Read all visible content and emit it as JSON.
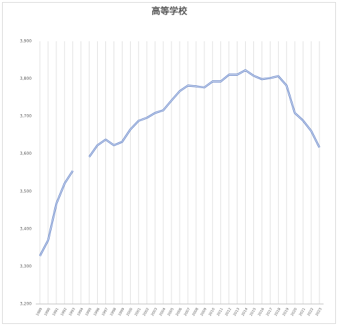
{
  "chart_data": {
    "type": "line",
    "title": "高等学校",
    "categories": [
      "1989",
      "1990",
      "1991",
      "1992",
      "1993",
      "1994",
      "1995",
      "1996",
      "1997",
      "1998",
      "1999",
      "2000",
      "2001",
      "2002",
      "2003",
      "2004",
      "2005",
      "2006",
      "2007",
      "2008",
      "2009",
      "2010",
      "2011",
      "2012",
      "2013",
      "2014",
      "2015",
      "2016",
      "2017",
      "2018",
      "2019",
      "2020",
      "2021",
      "2022",
      "2023"
    ],
    "series": [
      {
        "name": "高等学校",
        "color": "#4a6fbf",
        "values": [
          3328,
          3370,
          3467,
          3521,
          3555,
          null,
          3592,
          3623,
          3638,
          3623,
          3632,
          3665,
          3688,
          3696,
          3709,
          3716,
          3742,
          3767,
          3782,
          3780,
          3777,
          3793,
          3793,
          3811,
          3811,
          3823,
          3808,
          3799,
          3802,
          3807,
          3782,
          3709,
          3689,
          3661,
          3617
        ]
      }
    ],
    "ylim": [
      3200,
      3900
    ],
    "yticks": [
      {
        "value": 3200,
        "label": "3,200"
      },
      {
        "value": 3300,
        "label": "3,300"
      },
      {
        "value": 3400,
        "label": "3,400"
      },
      {
        "value": 3500,
        "label": "3,500"
      },
      {
        "value": 3600,
        "label": "3,600"
      },
      {
        "value": 3700,
        "label": "3,700"
      },
      {
        "value": 3800,
        "label": "3,800"
      },
      {
        "value": 3900,
        "label": "3,900"
      }
    ],
    "grid": true
  }
}
